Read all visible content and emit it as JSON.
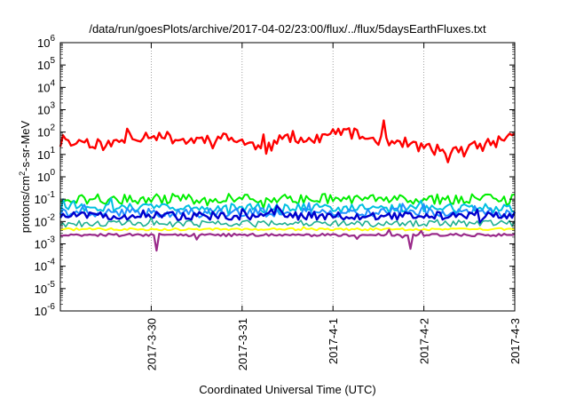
{
  "chart_data": {
    "type": "line",
    "title": "/data/run/goesPlots/archive/2017-04-02/23:00/flux/../flux/5daysEarthFluxes.txt",
    "xlabel": "Coordinated Universal Time (UTC)",
    "ylabel_parts": [
      "protons/cm",
      "2",
      "-s-sr-MeV"
    ],
    "yscale": "log",
    "ylim_exp": [
      -6,
      6
    ],
    "y_ticks": [
      {
        "base": "10",
        "exp": "-6"
      },
      {
        "base": "10",
        "exp": "-5"
      },
      {
        "base": "10",
        "exp": "-4"
      },
      {
        "base": "10",
        "exp": "-3"
      },
      {
        "base": "10",
        "exp": "-2"
      },
      {
        "base": "10",
        "exp": "-1"
      },
      {
        "base": "10",
        "exp": "0"
      },
      {
        "base": "10",
        "exp": "1"
      },
      {
        "base": "10",
        "exp": "2"
      },
      {
        "base": "10",
        "exp": "3"
      },
      {
        "base": "10",
        "exp": "4"
      },
      {
        "base": "10",
        "exp": "5"
      },
      {
        "base": "10",
        "exp": "6"
      }
    ],
    "x_start": "2017-03-29T00:00",
    "x_end": "2017-04-03T00:00",
    "x_ticks": [
      {
        "label": "2017-3-30",
        "t": "2017-03-30T00:00"
      },
      {
        "label": "2017-3-31",
        "t": "2017-03-31T00:00"
      },
      {
        "label": "2017-4-1",
        "t": "2017-04-01T00:00"
      },
      {
        "label": "2017-4-2",
        "t": "2017-04-02T00:00"
      },
      {
        "label": "2017-4-3",
        "t": "2017-04-03T00:00"
      }
    ],
    "grid": true,
    "series": [
      {
        "color": "#ff0000",
        "stroke": 2.4,
        "base": 30,
        "noise": 0.25,
        "spikes": 0.6,
        "spikeProb": 0.08,
        "seed": 11,
        "anchors": [
          [
            0.0,
            30
          ],
          [
            0.05,
            40
          ],
          [
            0.1,
            25
          ],
          [
            0.15,
            50
          ],
          [
            0.2,
            80
          ],
          [
            0.28,
            40
          ],
          [
            0.34,
            60
          ],
          [
            0.4,
            40
          ],
          [
            0.45,
            15
          ],
          [
            0.5,
            70
          ],
          [
            0.56,
            40
          ],
          [
            0.62,
            120
          ],
          [
            0.68,
            50
          ],
          [
            0.74,
            40
          ],
          [
            0.8,
            20
          ],
          [
            0.86,
            12
          ],
          [
            0.9,
            20
          ],
          [
            0.95,
            30
          ],
          [
            1.0,
            90
          ]
        ]
      },
      {
        "color": "#00ee00",
        "stroke": 2.0,
        "base": 0.1,
        "noise": 0.22,
        "spikes": 0.35,
        "spikeProb": 0.1,
        "seed": 21
      },
      {
        "color": "#00c0e0",
        "stroke": 2.0,
        "base": 0.04,
        "noise": 0.2,
        "spikes": 0.3,
        "spikeProb": 0.1,
        "seed": 31
      },
      {
        "color": "#2090ff",
        "stroke": 2.0,
        "base": 0.025,
        "noise": 0.2,
        "spikes": 0.3,
        "spikeProb": 0.1,
        "seed": 41
      },
      {
        "color": "#0000cc",
        "stroke": 2.4,
        "base": 0.018,
        "noise": 0.18,
        "spikes": 0.28,
        "spikeProb": 0.1,
        "seed": 51
      },
      {
        "color": "#20b090",
        "stroke": 1.6,
        "base": 0.008,
        "noise": 0.15,
        "spikes": 0.25,
        "spikeProb": 0.08,
        "seed": 61
      },
      {
        "color": "#ffff00",
        "stroke": 2.0,
        "base": 0.0045,
        "noise": 0.05,
        "spikes": 0.1,
        "spikeProb": 0.05,
        "seed": 71
      },
      {
        "color": "#9a2a8a",
        "stroke": 2.2,
        "base": 0.0025,
        "noise": 0.06,
        "spikes": 0.35,
        "spikeProb": 0.03,
        "seed": 81,
        "dips": [
          [
            0.21,
            0.0005
          ],
          [
            0.77,
            0.0006
          ]
        ]
      }
    ]
  }
}
